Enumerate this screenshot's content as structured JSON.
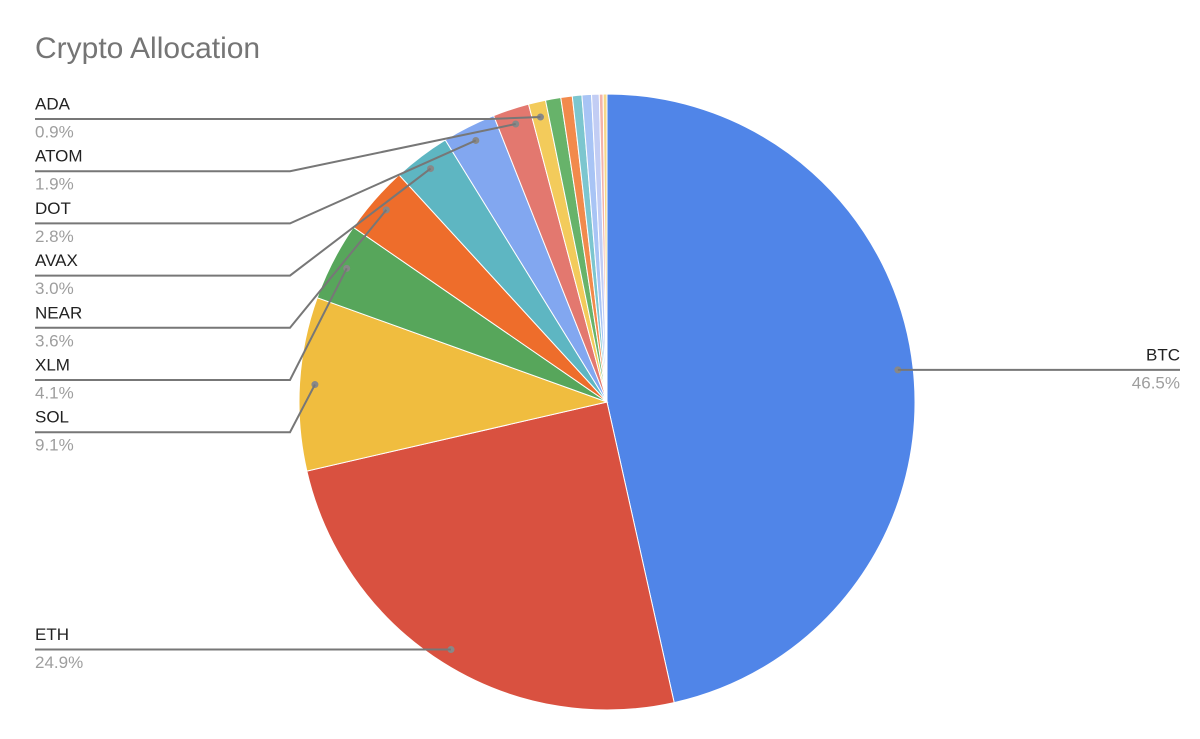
{
  "chart_data": {
    "type": "pie",
    "title": "Crypto Allocation",
    "categories": [
      "BTC",
      "ETH",
      "SOL",
      "XLM",
      "NEAR",
      "AVAX",
      "DOT",
      "ATOM",
      "ADA",
      null,
      null,
      null,
      null,
      null,
      null,
      null
    ],
    "values": [
      46.5,
      24.9,
      9.1,
      4.1,
      3.6,
      3.0,
      2.8,
      1.9,
      0.9,
      0.8,
      0.6,
      0.5,
      0.5,
      0.4,
      0.2,
      0.2
    ],
    "value_labels": [
      "46.5%",
      "24.9%",
      "9.1%",
      "4.1%",
      "3.6%",
      "3.0%",
      "2.8%",
      "1.9%",
      "0.9%",
      null,
      null,
      null,
      null,
      null,
      null,
      null
    ],
    "colors": [
      "#5085e8",
      "#d95140",
      "#f0bd3f",
      "#57a65b",
      "#ee6d2b",
      "#5eb6c2",
      "#82a7f0",
      "#e3786f",
      "#f3cb5b",
      "#67b36a",
      "#f28a4c",
      "#7cc6cf",
      "#a8c4f5",
      "#c2cdf4",
      "#f4b3a9",
      "#f6d88a"
    ]
  }
}
